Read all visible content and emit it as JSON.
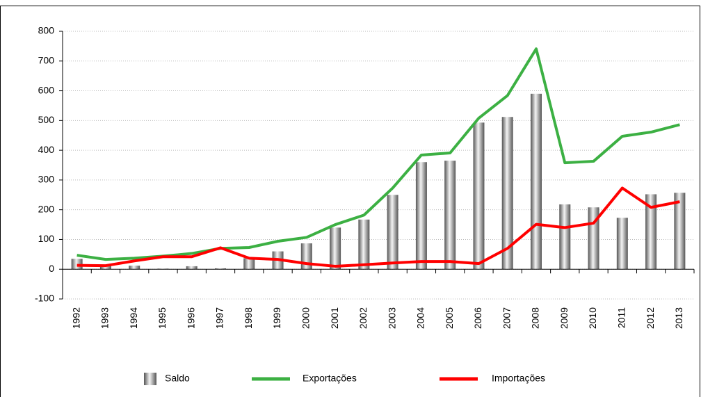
{
  "chart_data": {
    "type": "bar",
    "categories": [
      "1992",
      "1993",
      "1994",
      "1995",
      "1996",
      "1997",
      "1998",
      "1999",
      "2000",
      "2001",
      "2002",
      "2003",
      "2004",
      "2005",
      "2006",
      "2007",
      "2008",
      "2009",
      "2010",
      "2011",
      "2012",
      "2013"
    ],
    "series": [
      {
        "name": "Saldo",
        "type": "bar",
        "color": "#888888",
        "values": [
          35,
          15,
          12,
          2,
          10,
          3,
          37,
          60,
          87,
          140,
          167,
          250,
          360,
          365,
          493,
          512,
          590,
          218,
          208,
          173,
          252,
          257
        ]
      },
      {
        "name": "Exportações",
        "type": "line",
        "color": "#3cb043",
        "values": [
          47,
          33,
          37,
          44,
          53,
          70,
          73,
          94,
          107,
          150,
          182,
          273,
          384,
          391,
          508,
          584,
          741,
          358,
          363,
          447,
          461,
          486
        ]
      },
      {
        "name": "Importações",
        "type": "line",
        "color": "#ff0000",
        "values": [
          13,
          12,
          28,
          42,
          42,
          72,
          37,
          33,
          19,
          10,
          15,
          21,
          26,
          26,
          19,
          70,
          151,
          140,
          155,
          273,
          208,
          227
        ]
      }
    ],
    "ylim": [
      -100,
      800
    ],
    "yticks": [
      -100,
      0,
      100,
      200,
      300,
      400,
      500,
      600,
      700,
      800
    ],
    "grid": true
  }
}
